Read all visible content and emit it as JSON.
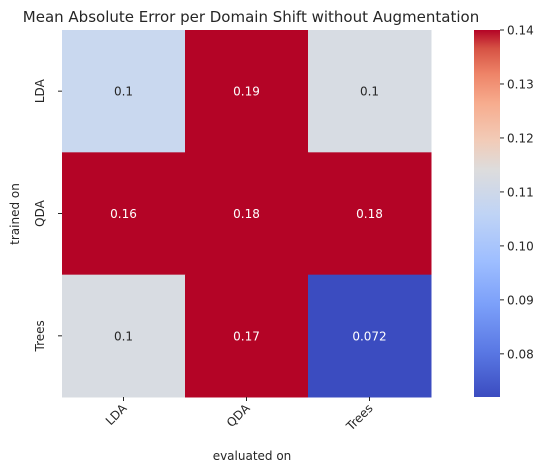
{
  "chart_data": {
    "type": "heatmap",
    "title": "Mean Absolute Error per Domain Shift without Augmentation",
    "xlabel": "evaluated on",
    "ylabel": "trained on",
    "x_categories": [
      "LDA",
      "QDA",
      "Trees"
    ],
    "y_categories": [
      "LDA",
      "QDA",
      "Trees"
    ],
    "values": [
      [
        0.1,
        0.19,
        0.1
      ],
      [
        0.16,
        0.18,
        0.18
      ],
      [
        0.1,
        0.17,
        0.072
      ]
    ],
    "value_labels": [
      [
        "0.1",
        "0.19",
        "0.1"
      ],
      [
        "0.16",
        "0.18",
        "0.18"
      ],
      [
        "0.1",
        "0.17",
        "0.072"
      ]
    ],
    "cell_colors": [
      [
        "#c9d8ef",
        "#b40426",
        "#d7dce3"
      ],
      [
        "#b40426",
        "#b40426",
        "#b40426"
      ],
      [
        "#d8dce2",
        "#b40426",
        "#3b4cc0"
      ]
    ],
    "colormap": "coolwarm",
    "vmin": 0.072,
    "vmax": 0.14,
    "colorbar_ticks": [
      "0.08",
      "0.09",
      "0.10",
      "0.11",
      "0.12",
      "0.13",
      "0.14"
    ],
    "colorbar_tick_values": [
      0.08,
      0.09,
      0.1,
      0.11,
      0.12,
      0.13,
      0.14
    ],
    "colors": {
      "low": "#3b4cc0",
      "mid": "#dddddd",
      "high": "#b40426",
      "text": "#262626"
    }
  }
}
